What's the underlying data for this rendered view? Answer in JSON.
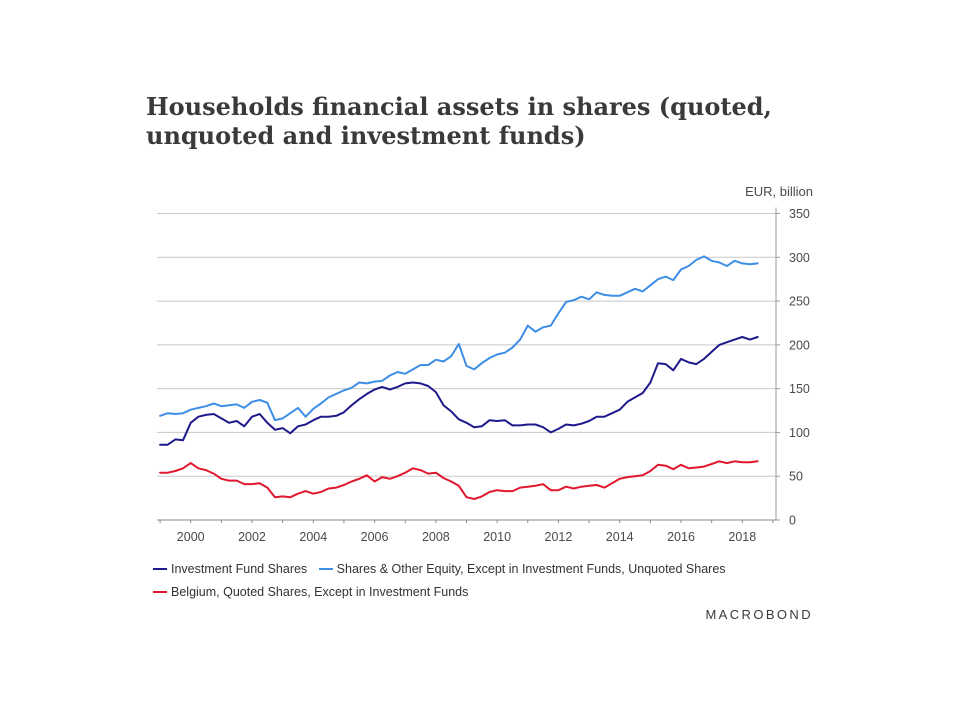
{
  "header": {
    "title": "Households financial assets in shares (quoted, unquoted and investment funds)",
    "unit_label": "EUR, billion"
  },
  "footer": {
    "brand": "MACROBOND"
  },
  "chart_data": {
    "type": "line",
    "title": "Households financial assets in shares (quoted, unquoted and investment funds)",
    "ylabel": "EUR, billion",
    "xlabel": "",
    "xlim": [
      1998.9,
      2019.1
    ],
    "ylim": [
      0,
      350
    ],
    "y_ticks": [
      "350",
      "300",
      "250",
      "200",
      "150",
      "100",
      "50",
      "0"
    ],
    "x_ticks": [
      "2000",
      "2002",
      "2004",
      "2006",
      "2008",
      "2010",
      "2012",
      "2014",
      "2016",
      "2018"
    ],
    "grid": true,
    "y_axis_position": "right",
    "legend_position": "bottom",
    "x": [
      1999.0,
      1999.25,
      1999.5,
      1999.75,
      2000.0,
      2000.25,
      2000.5,
      2000.75,
      2001.0,
      2001.25,
      2001.5,
      2001.75,
      2002.0,
      2002.25,
      2002.5,
      2002.75,
      2003.0,
      2003.25,
      2003.5,
      2003.75,
      2004.0,
      2004.25,
      2004.5,
      2004.75,
      2005.0,
      2005.25,
      2005.5,
      2005.75,
      2006.0,
      2006.25,
      2006.5,
      2006.75,
      2007.0,
      2007.25,
      2007.5,
      2007.75,
      2008.0,
      2008.25,
      2008.5,
      2008.75,
      2009.0,
      2009.25,
      2009.5,
      2009.75,
      2010.0,
      2010.25,
      2010.5,
      2010.75,
      2011.0,
      2011.25,
      2011.5,
      2011.75,
      2012.0,
      2012.25,
      2012.5,
      2012.75,
      2013.0,
      2013.25,
      2013.5,
      2013.75,
      2014.0,
      2014.25,
      2014.5,
      2014.75,
      2015.0,
      2015.25,
      2015.5,
      2015.75,
      2016.0,
      2016.25,
      2016.5,
      2016.75,
      2017.0,
      2017.25,
      2017.5,
      2017.75,
      2018.0,
      2018.25,
      2018.5
    ],
    "series": [
      {
        "name": "Investment Fund Shares",
        "color": "#1f1a8c",
        "values": [
          86,
          86,
          92,
          91,
          111,
          118,
          120,
          121,
          116,
          111,
          113,
          107,
          118,
          121,
          111,
          103,
          105,
          99,
          107,
          109,
          114,
          118,
          118,
          119,
          123,
          131,
          138,
          144,
          149,
          152,
          149,
          152,
          156,
          157,
          156,
          153,
          146,
          131,
          124,
          115,
          111,
          106,
          107,
          114,
          113,
          114,
          108,
          108,
          109,
          109,
          106,
          100,
          104,
          109,
          108,
          110,
          113,
          118,
          118,
          122,
          126,
          135,
          140,
          145,
          157,
          179,
          178,
          171,
          184,
          180,
          178,
          184,
          192,
          200,
          203,
          206,
          209,
          206,
          209
        ]
      },
      {
        "name": "Shares & Other Equity, Except in Investment Funds, Unquoted Shares",
        "color": "#3e8ee5",
        "values": [
          119,
          122,
          121,
          122,
          126,
          128,
          130,
          133,
          130,
          131,
          132,
          128,
          135,
          137,
          134,
          114,
          116,
          122,
          128,
          118,
          127,
          133,
          140,
          144,
          148,
          151,
          157,
          156,
          158,
          159,
          165,
          169,
          167,
          172,
          177,
          177,
          183,
          181,
          187,
          201,
          176,
          172,
          179,
          185,
          189,
          191,
          197,
          206,
          222,
          215,
          220,
          222,
          236,
          249,
          251,
          255,
          252,
          260,
          257,
          256,
          256,
          260,
          264,
          261,
          268,
          275,
          278,
          274,
          286,
          290,
          297,
          301,
          296,
          294,
          290,
          296,
          293,
          292,
          293
        ]
      },
      {
        "name": "Belgium, Quoted Shares, Except in Investment Funds",
        "color": "#e0182d",
        "values": [
          54,
          54,
          56,
          59,
          65,
          59,
          57,
          53,
          47,
          45,
          45,
          41,
          41,
          42,
          37,
          26,
          27,
          26,
          30,
          33,
          30,
          32,
          36,
          37,
          40,
          44,
          47,
          51,
          44,
          49,
          47,
          50,
          54,
          59,
          57,
          53,
          54,
          48,
          44,
          39,
          26,
          24,
          27,
          32,
          34,
          33,
          33,
          37,
          38,
          39,
          41,
          34,
          34,
          38,
          36,
          38,
          39,
          40,
          37,
          42,
          47,
          49,
          50,
          51,
          56,
          63,
          62,
          58,
          63,
          59,
          60,
          61,
          64,
          67,
          65,
          67,
          66,
          66,
          67
        ]
      }
    ]
  }
}
